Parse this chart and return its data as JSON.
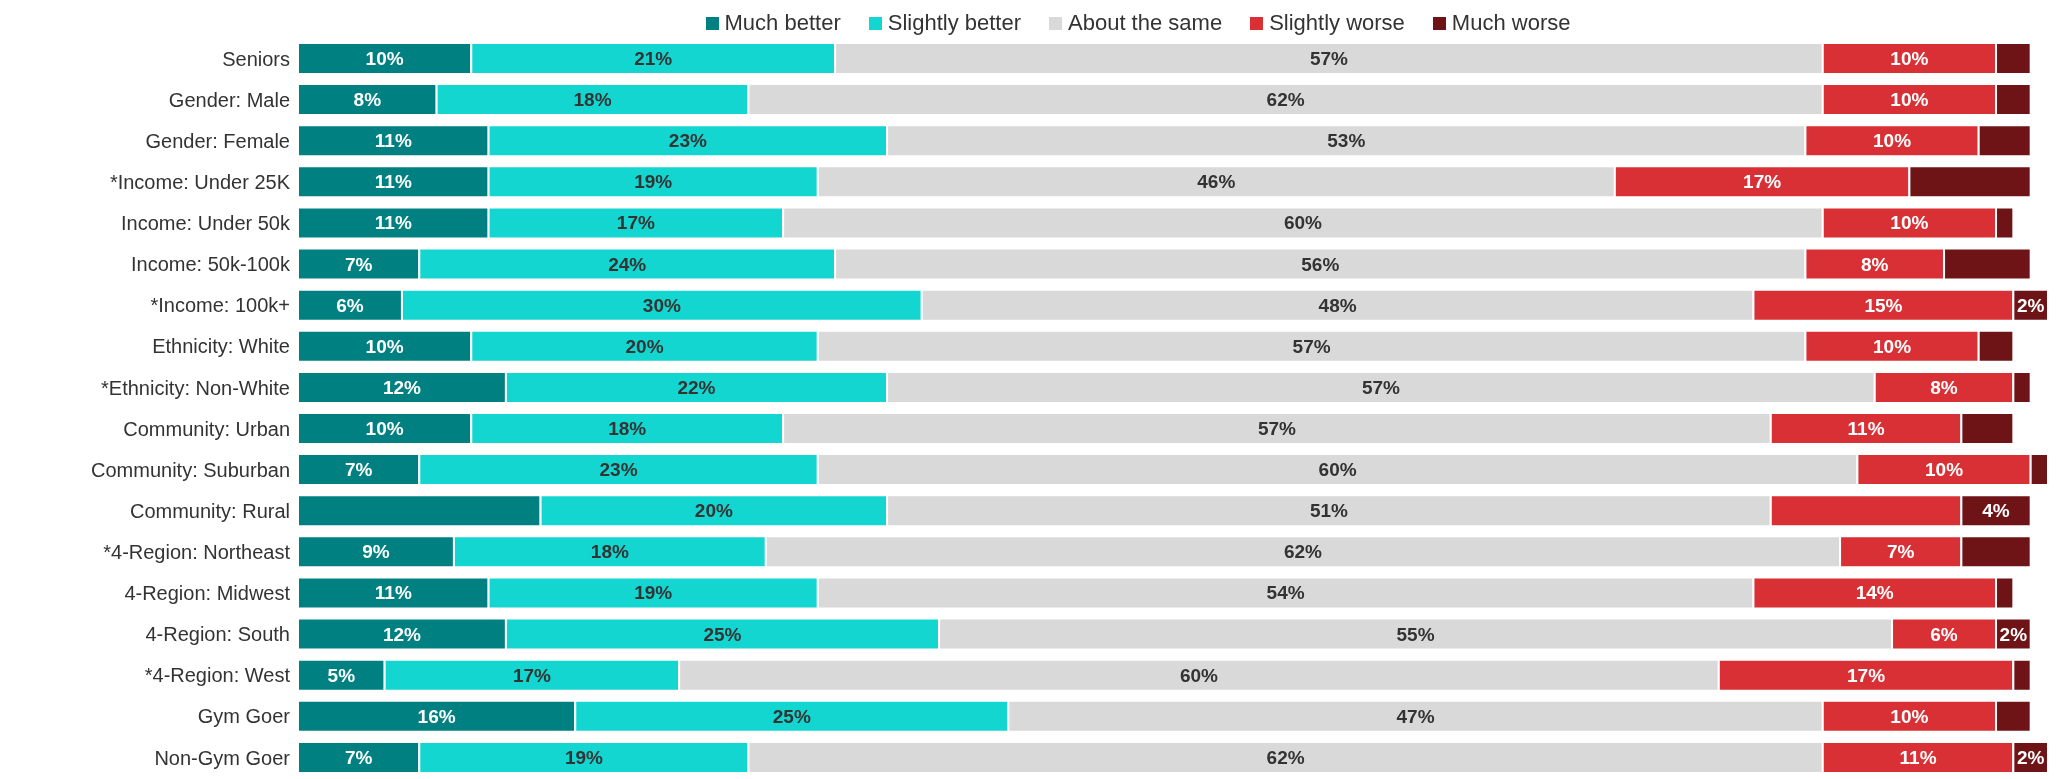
{
  "chart_data": {
    "type": "bar",
    "orientation": "horizontal",
    "stacked": true,
    "legend": "top",
    "tick_labels": "y",
    "categories": [
      "Seniors",
      "Gender: Male",
      "Gender: Female",
      "*Income: Under 25K",
      "Income: Under 50k",
      "Income: 50k-100k",
      "*Income: 100k+",
      "Ethnicity: White",
      "*Ethnicity: Non-White",
      "Community: Urban",
      "Community: Suburban",
      "Community: Rural",
      "*4-Region: Northeast",
      "4-Region: Midwest",
      "4-Region: South",
      "*4-Region: West",
      "Gym Goer",
      "Non-Gym Goer"
    ],
    "series": [
      {
        "name": "Much better",
        "color": "#008080",
        "values": [
          10,
          8,
          11,
          11,
          11,
          7,
          6,
          10,
          12,
          10,
          7,
          14,
          9,
          11,
          12,
          5,
          16,
          7
        ],
        "value_labels": [
          "10%",
          "8%",
          "11%",
          "11%",
          "11%",
          "7%",
          "6%",
          "10%",
          "12%",
          "10%",
          "7%",
          null,
          "9%",
          "11%",
          "12%",
          "5%",
          "16%",
          "7%"
        ]
      },
      {
        "name": "Slightly better",
        "color": "#14d6d0",
        "values": [
          21,
          18,
          23,
          19,
          17,
          24,
          30,
          20,
          22,
          18,
          23,
          20,
          18,
          19,
          25,
          17,
          25,
          19
        ],
        "value_labels": [
          "21%",
          "18%",
          "23%",
          "19%",
          "17%",
          "24%",
          "30%",
          "20%",
          "22%",
          "18%",
          "23%",
          "20%",
          "18%",
          "19%",
          "25%",
          "17%",
          "25%",
          "19%"
        ]
      },
      {
        "name": "About the same",
        "color": "#d9d9d9",
        "values": [
          57,
          62,
          53,
          46,
          60,
          56,
          48,
          57,
          57,
          57,
          60,
          51,
          62,
          54,
          55,
          60,
          47,
          62
        ],
        "value_labels": [
          "57%",
          "62%",
          "53%",
          "46%",
          "60%",
          "56%",
          "48%",
          "57%",
          "57%",
          "57%",
          "60%",
          "51%",
          "62%",
          "54%",
          "55%",
          "60%",
          "47%",
          "62%"
        ]
      },
      {
        "name": "Slightly worse",
        "color": "#d93035",
        "values": [
          10,
          10,
          10,
          17,
          10,
          8,
          15,
          10,
          8,
          11,
          10,
          11,
          7,
          14,
          6,
          17,
          10,
          11
        ],
        "value_labels": [
          "10%",
          "10%",
          "10%",
          "17%",
          "10%",
          "8%",
          "15%",
          "10%",
          "8%",
          "11%",
          "10%",
          null,
          "7%",
          "14%",
          "6%",
          "17%",
          "10%",
          "11%"
        ]
      },
      {
        "name": "Much worse",
        "color": "#6e1416",
        "values": [
          2,
          2,
          3,
          7,
          1,
          5,
          2,
          2,
          1,
          3,
          1,
          4,
          4,
          1,
          2,
          1,
          2,
          2
        ],
        "value_labels": [
          null,
          null,
          null,
          null,
          null,
          null,
          "2%",
          null,
          null,
          null,
          null,
          "4%",
          null,
          null,
          "2%",
          null,
          null,
          "2%"
        ]
      }
    ]
  }
}
